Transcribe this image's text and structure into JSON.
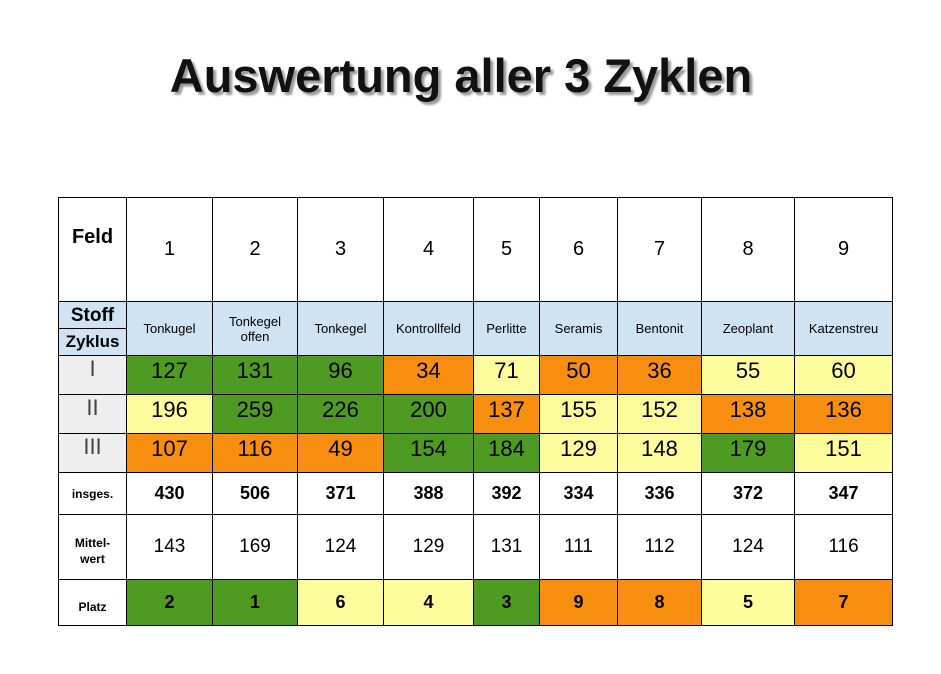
{
  "title": "Auswertung aller 3 Zyklen",
  "colors": {
    "green": "#4e9a22",
    "yellow": "#fcfc9c",
    "orange": "#f78e10",
    "header_blue": "#cfe3f3",
    "label_gray": "#eeeeee"
  },
  "labels": {
    "feld": "Feld",
    "stoff": "Stoff",
    "zyklus": "Zyklus",
    "insges": "insges.",
    "mittel_1": "Mittel-",
    "mittel_2": "wert",
    "platz": "Platz"
  },
  "felder": [
    "1",
    "2",
    "3",
    "4",
    "5",
    "6",
    "7",
    "8",
    "9"
  ],
  "stoffe": [
    "Tonkugel",
    "Tonkegel offen",
    "Tonkegel",
    "Kontrollfeld",
    "Perlitte",
    "Seramis",
    "Bentonit",
    "Zeoplant",
    "Katzenstreu"
  ],
  "zyklen": [
    {
      "label": "I",
      "values": [
        "127",
        "131",
        "96",
        "34",
        "71",
        "50",
        "36",
        "55",
        "60"
      ],
      "colors": [
        "green",
        "green",
        "green",
        "orange",
        "yellow",
        "orange",
        "orange",
        "yellow",
        "yellow"
      ]
    },
    {
      "label": "II",
      "values": [
        "196",
        "259",
        "226",
        "200",
        "137",
        "155",
        "152",
        "138",
        "136"
      ],
      "colors": [
        "yellow",
        "green",
        "green",
        "green",
        "orange",
        "yellow",
        "yellow",
        "orange",
        "orange"
      ]
    },
    {
      "label": "III",
      "values": [
        "107",
        "116",
        "49",
        "154",
        "184",
        "129",
        "148",
        "179",
        "151"
      ],
      "colors": [
        "orange",
        "orange",
        "orange",
        "green",
        "green",
        "yellow",
        "yellow",
        "green",
        "yellow"
      ]
    }
  ],
  "insges": [
    "430",
    "506",
    "371",
    "388",
    "392",
    "334",
    "336",
    "372",
    "347"
  ],
  "mittelwert": [
    "143",
    "169",
    "124",
    "129",
    "131",
    "111",
    "112",
    "124",
    "116"
  ],
  "platz": {
    "values": [
      "2",
      "1",
      "6",
      "4",
      "3",
      "9",
      "8",
      "5",
      "7"
    ],
    "colors": [
      "green",
      "green",
      "yellow",
      "yellow",
      "green",
      "orange",
      "orange",
      "yellow",
      "orange"
    ]
  }
}
